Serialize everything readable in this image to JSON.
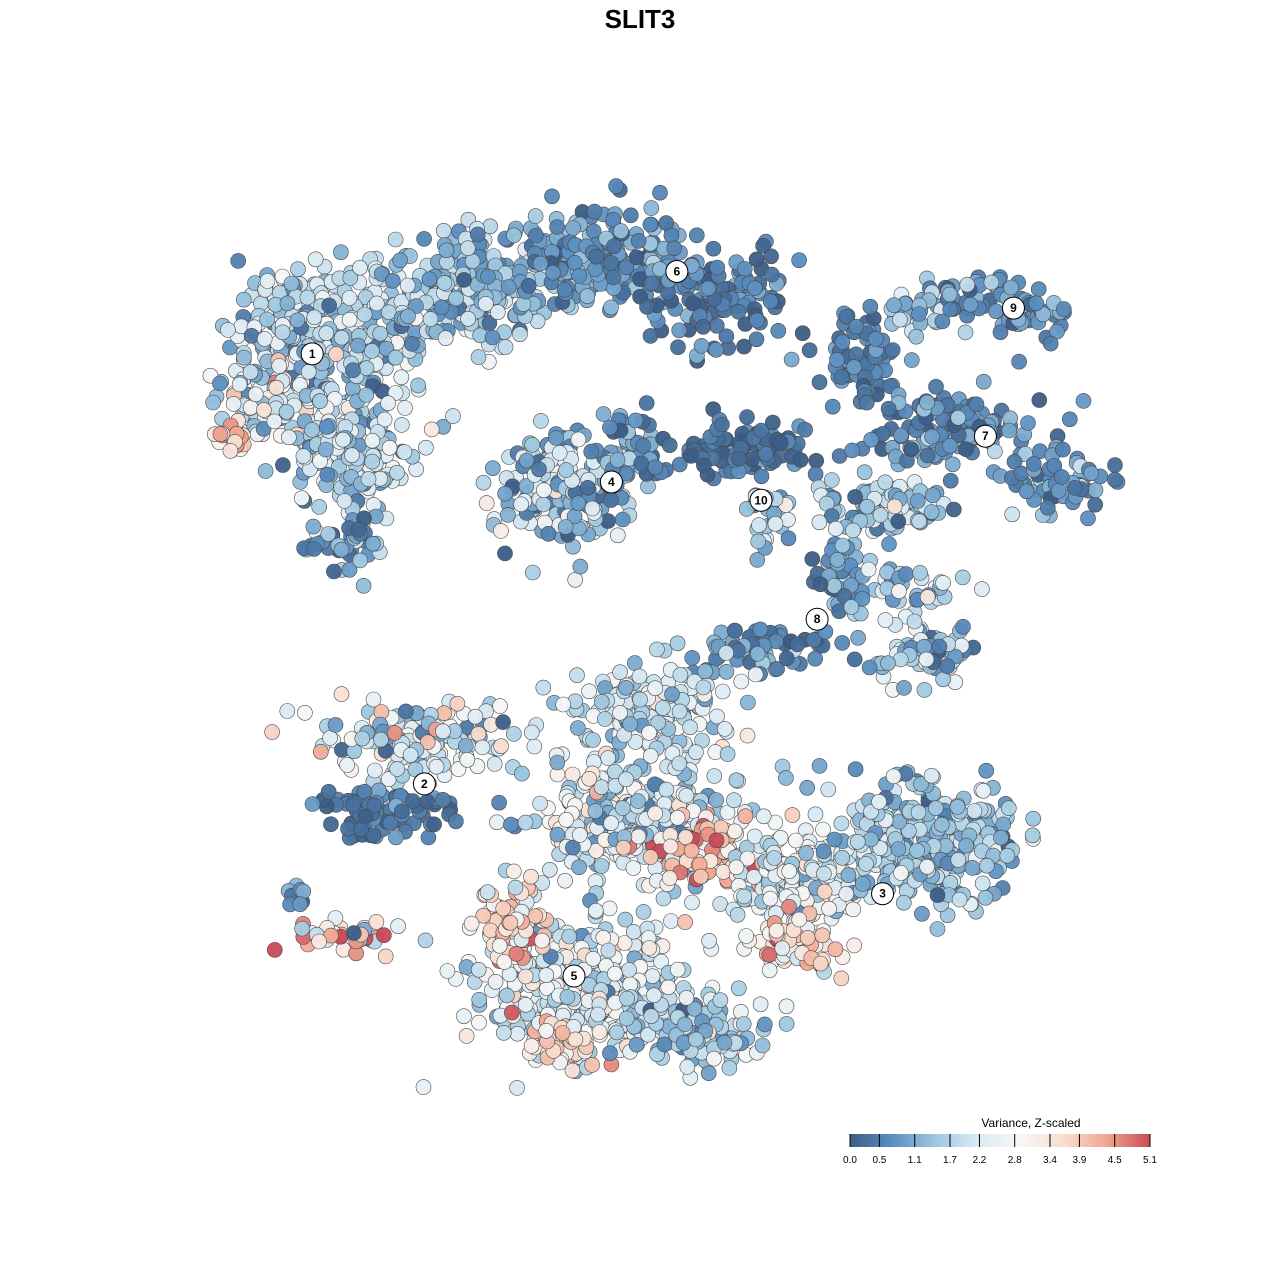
{
  "chart_data": {
    "type": "scatter",
    "title": "SLIT3",
    "xlabel": "",
    "ylabel": "",
    "grid": false,
    "legend": {
      "title": "Variance, Z-scaled",
      "placement": "bottom-right",
      "ticks": [
        "0.0",
        "0.5",
        "1.1",
        "1.7",
        "2.2",
        "2.8",
        "3.4",
        "3.9",
        "4.5",
        "5.1"
      ],
      "range": [
        0.0,
        5.1
      ],
      "colors": [
        "#3b5d87",
        "#5b8fc1",
        "#9ec8e0",
        "#dcebf4",
        "#f7f7f7",
        "#f9dccd",
        "#f0a58f",
        "#c94a58"
      ]
    },
    "clusters": [
      {
        "label": "1",
        "x": 0.12,
        "y": 0.81
      },
      {
        "label": "2",
        "x": 0.24,
        "y": 0.34
      },
      {
        "label": "3",
        "x": 0.73,
        "y": 0.22
      },
      {
        "label": "4",
        "x": 0.44,
        "y": 0.67
      },
      {
        "label": "5",
        "x": 0.4,
        "y": 0.13
      },
      {
        "label": "6",
        "x": 0.51,
        "y": 0.9
      },
      {
        "label": "7",
        "x": 0.84,
        "y": 0.72
      },
      {
        "label": "8",
        "x": 0.66,
        "y": 0.52
      },
      {
        "label": "9",
        "x": 0.87,
        "y": 0.86
      },
      {
        "label": "10",
        "x": 0.6,
        "y": 0.65
      }
    ]
  }
}
